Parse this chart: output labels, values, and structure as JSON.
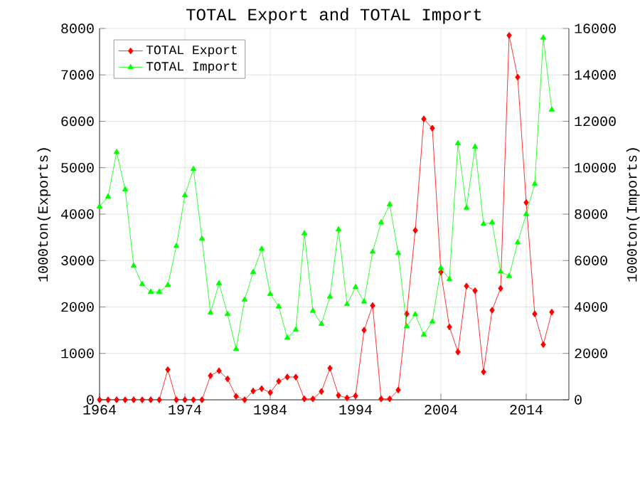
{
  "chart_data": {
    "type": "line",
    "title": "TOTAL Export and TOTAL Import",
    "ylabel": "1000ton(Exports)",
    "y2label": "1000ton(Imports)",
    "x": [
      1964,
      1965,
      1966,
      1967,
      1968,
      1969,
      1970,
      1971,
      1972,
      1973,
      1974,
      1975,
      1976,
      1977,
      1978,
      1979,
      1980,
      1981,
      1982,
      1983,
      1984,
      1985,
      1986,
      1987,
      1988,
      1989,
      1990,
      1991,
      1992,
      1993,
      1994,
      1995,
      1996,
      1997,
      1998,
      1999,
      2000,
      2001,
      2002,
      2003,
      2004,
      2005,
      2006,
      2007,
      2008,
      2009,
      2010,
      2011,
      2012,
      2013,
      2014,
      2015,
      2016,
      2017
    ],
    "series": [
      {
        "name": "TOTAL Export",
        "color": "#ff0000",
        "marker": "diamond",
        "values": [
          0,
          0,
          0,
          0,
          0,
          0,
          0,
          0,
          650,
          0,
          0,
          0,
          0,
          520,
          625,
          450,
          75,
          0,
          190,
          240,
          155,
          400,
          490,
          490,
          20,
          20,
          180,
          680,
          95,
          40,
          85,
          1500,
          2030,
          20,
          20,
          210,
          1850,
          3650,
          6050,
          5850,
          2750,
          1570,
          1030,
          2450,
          2350,
          600,
          1930,
          2400,
          7850,
          6950,
          4250,
          1850,
          1190,
          1890
        ]
      },
      {
        "name": "TOTAL Import",
        "color": "#00ff00",
        "marker": "triangle",
        "axis": "y2",
        "values": [
          8330,
          8750,
          10670,
          9060,
          5770,
          4980,
          4650,
          4650,
          4940,
          6625,
          8810,
          9940,
          6940,
          3750,
          5020,
          3690,
          2190,
          4310,
          5500,
          6500,
          4560,
          4020,
          2670,
          3020,
          7170,
          3830,
          3270,
          4440,
          7340,
          4120,
          4850,
          4230,
          6380,
          7640,
          8420,
          6320,
          3160,
          3680,
          2800,
          3370,
          5680,
          5200,
          11050,
          8270,
          10900,
          7580,
          7640,
          5520,
          5330,
          6780,
          8000,
          9300,
          15600,
          12500
        ]
      }
    ],
    "xlim": [
      1964,
      2019
    ],
    "xticks": [
      1964,
      1974,
      1984,
      1994,
      2004,
      2014
    ],
    "ylim": [
      0,
      8000
    ],
    "yticks": [
      0,
      1000,
      2000,
      3000,
      4000,
      5000,
      6000,
      7000,
      8000
    ],
    "y2lim": [
      0,
      16000
    ],
    "y2ticks": [
      0,
      2000,
      4000,
      6000,
      8000,
      10000,
      12000,
      14000,
      16000
    ],
    "grid": true,
    "legend": "top left"
  }
}
